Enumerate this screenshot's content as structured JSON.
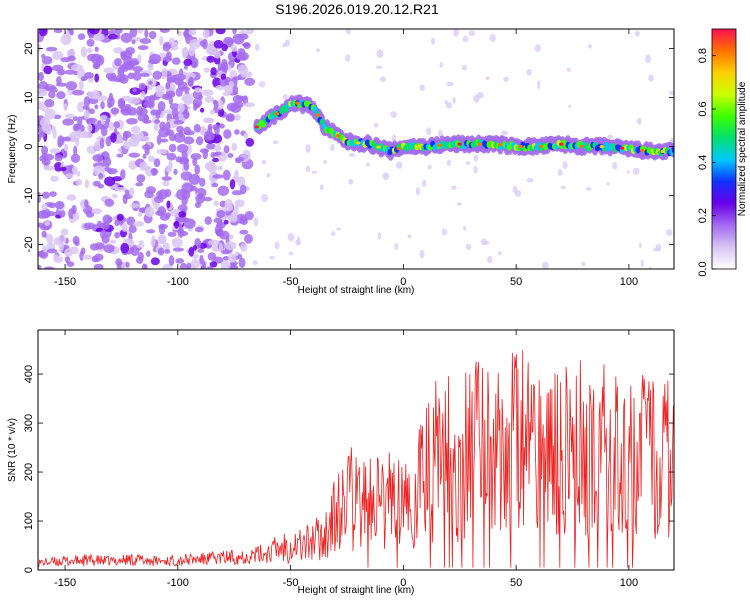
{
  "title": "S196.2026.019.20.12.R21",
  "chart_data": [
    {
      "type": "heatmap",
      "xlabel": "Height of straight line (km)",
      "ylabel": "Frequency (Hz)",
      "xlim": [
        -162,
        120
      ],
      "ylim": [
        -25,
        24
      ],
      "xticks": [
        -150,
        -100,
        -50,
        0,
        50,
        100
      ],
      "yticks": [
        -20,
        -10,
        0,
        10,
        20
      ],
      "colorbar": {
        "label": "Normalized spectral amplitude",
        "range": [
          0.0,
          0.9
        ],
        "ticks": [
          0.0,
          0.2,
          0.4,
          0.6,
          0.8
        ],
        "colors": [
          "#ffffff",
          "#d9c5f5",
          "#a46cf0",
          "#6a00e8",
          "#1030ff",
          "#00c8ff",
          "#00e070",
          "#3cff00",
          "#c8ff00",
          "#ffd000",
          "#ff7000",
          "#ff1050"
        ]
      },
      "ridge": {
        "x": [
          -65,
          -55,
          -48,
          -40,
          -35,
          -25,
          -15,
          -5,
          0,
          10,
          20,
          30,
          40,
          50,
          60,
          70,
          80,
          90,
          100,
          110,
          120
        ],
        "freq": [
          4,
          7,
          9,
          8,
          4,
          1,
          0.5,
          -1,
          0,
          0,
          0.5,
          0.5,
          0.5,
          0,
          0,
          0.5,
          0,
          0,
          -0.5,
          -1,
          -1
        ]
      }
    },
    {
      "type": "line",
      "xlabel": "Height of straight line (km)",
      "ylabel": "SNR (10 * v/v)",
      "xlim": [
        -162,
        120
      ],
      "ylim": [
        0,
        490
      ],
      "xticks": [
        -150,
        -100,
        -50,
        0,
        50,
        100
      ],
      "yticks": [
        0,
        100,
        200,
        300,
        400
      ],
      "color": "#ee2020",
      "x": [
        -162,
        -150,
        -140,
        -130,
        -120,
        -110,
        -100,
        -90,
        -80,
        -70,
        -60,
        -55,
        -50,
        -45,
        -40,
        -35,
        -30,
        -25,
        -20,
        -15,
        -10,
        -5,
        0,
        5,
        10,
        15,
        20,
        25,
        30,
        35,
        40,
        45,
        50,
        55,
        60,
        65,
        70,
        75,
        80,
        85,
        90,
        95,
        100,
        105,
        110,
        115,
        120
      ],
      "y": [
        15,
        18,
        20,
        18,
        22,
        18,
        20,
        22,
        25,
        28,
        35,
        45,
        55,
        50,
        60,
        70,
        110,
        140,
        150,
        160,
        130,
        150,
        120,
        160,
        190,
        230,
        230,
        220,
        250,
        260,
        270,
        280,
        260,
        270,
        230,
        250,
        230,
        260,
        240,
        250,
        240,
        230,
        220,
        230,
        220,
        230,
        220
      ]
    }
  ]
}
